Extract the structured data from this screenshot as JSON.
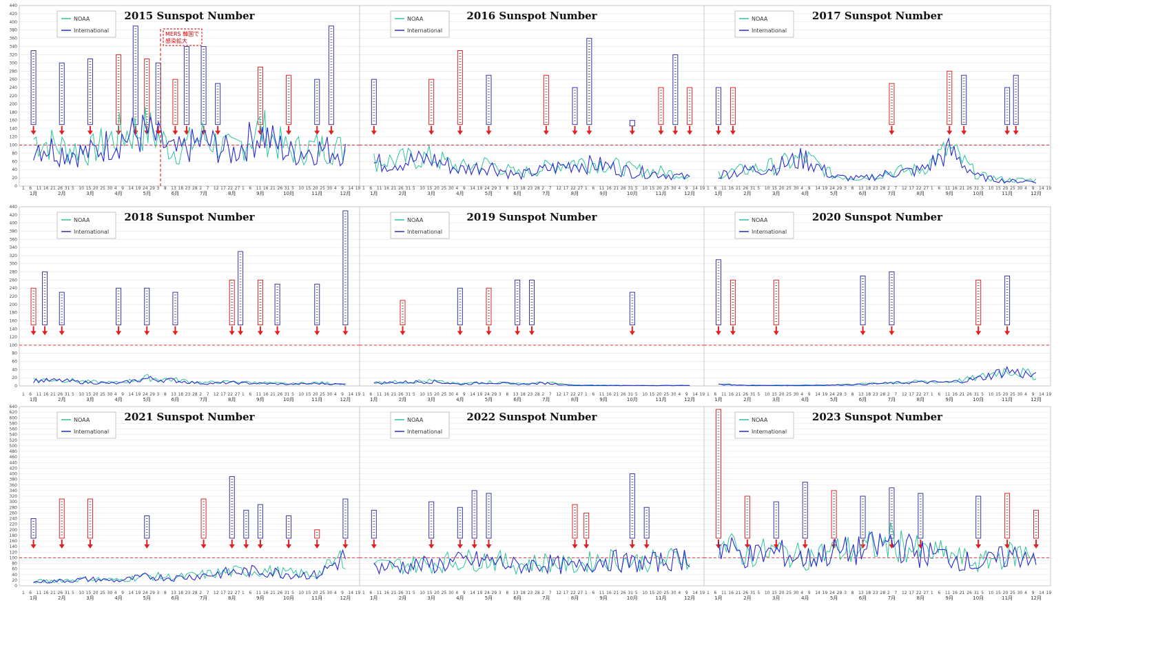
{
  "figure": {
    "note_lines": [
      "MERS 韓国で",
      "感染拡大"
    ],
    "y_ticks_top": [
      0,
      20,
      40,
      60,
      80,
      100,
      120,
      140,
      160,
      180,
      200,
      220,
      240,
      260,
      280,
      300,
      320,
      340,
      360,
      380,
      400,
      420,
      440
    ],
    "y_ticks_mid": [
      0,
      20,
      40,
      60,
      80,
      100,
      120,
      140,
      160,
      180,
      200,
      220,
      240,
      260,
      280,
      300,
      320,
      340,
      360,
      380,
      400,
      420,
      440
    ],
    "y_ticks_bottom": [
      0,
      20,
      40,
      60,
      80,
      100,
      120,
      140,
      160,
      180,
      200,
      220,
      240,
      260,
      280,
      300,
      320,
      340,
      360,
      380,
      400,
      420,
      440,
      460,
      480,
      500,
      520,
      540,
      560,
      580,
      600,
      620,
      640
    ],
    "months": [
      "1月",
      "2月",
      "3月",
      "4月",
      "5月",
      "6月",
      "7月",
      "8月",
      "9月",
      "10月",
      "11月",
      "12月"
    ],
    "colors": {
      "noaa": "#2ec4a0",
      "international": "#2a2ad0",
      "reference": "#e03030",
      "event_red": "#e02020",
      "event_blue": "#3333aa",
      "note": "#d00000"
    }
  },
  "chart_data": [
    {
      "type": "line",
      "title": "2015 Sunspot Number",
      "ylim": [
        0,
        440
      ],
      "reference_line": 100,
      "categories": [
        "1月",
        "2月",
        "3月",
        "4月",
        "5月",
        "6月",
        "7月",
        "8月",
        "9月",
        "10月",
        "11月",
        "12月"
      ],
      "series": [
        {
          "name": "NOAA",
          "values": [
            115,
            95,
            85,
            125,
            140,
            85,
            120,
            85,
            140,
            85,
            95,
            90
          ]
        },
        {
          "name": "International",
          "values": [
            105,
            85,
            80,
            115,
            130,
            80,
            110,
            80,
            130,
            80,
            90,
            85
          ]
        }
      ],
      "event_markers": [
        {
          "month": 1,
          "top": 330,
          "color": "blue"
        },
        {
          "month": 2,
          "top": 300,
          "color": "blue"
        },
        {
          "month": 3,
          "top": 310,
          "color": "blue"
        },
        {
          "month": 4,
          "top": 320,
          "color": "red"
        },
        {
          "month": 4.6,
          "top": 390,
          "color": "blue"
        },
        {
          "month": 5,
          "top": 310,
          "color": "red"
        },
        {
          "month": 5.4,
          "top": 300,
          "color": "blue"
        },
        {
          "month": 6,
          "top": 260,
          "color": "red"
        },
        {
          "month": 6.4,
          "top": 340,
          "color": "blue"
        },
        {
          "month": 7,
          "top": 340,
          "color": "blue"
        },
        {
          "month": 7.5,
          "top": 250,
          "color": "blue"
        },
        {
          "month": 9,
          "top": 290,
          "color": "red"
        },
        {
          "month": 10,
          "top": 270,
          "color": "red"
        },
        {
          "month": 11,
          "top": 260,
          "color": "blue"
        },
        {
          "month": 11.5,
          "top": 390,
          "color": "blue"
        }
      ]
    },
    {
      "type": "line",
      "title": "2016 Sunspot Number",
      "ylim": [
        0,
        440
      ],
      "reference_line": 100,
      "categories": [
        "1月",
        "2月",
        "3月",
        "4月",
        "5月",
        "6月",
        "7月",
        "8月",
        "9月",
        "10月",
        "11月",
        "12月"
      ],
      "series": [
        {
          "name": "NOAA",
          "values": [
            60,
            65,
            70,
            45,
            55,
            30,
            45,
            60,
            55,
            40,
            35,
            25
          ]
        },
        {
          "name": "International",
          "values": [
            55,
            60,
            65,
            40,
            50,
            25,
            40,
            55,
            50,
            35,
            30,
            20
          ]
        }
      ],
      "event_markers": [
        {
          "month": 1,
          "top": 260,
          "color": "blue"
        },
        {
          "month": 3,
          "top": 260,
          "color": "red"
        },
        {
          "month": 4,
          "top": 330,
          "color": "red"
        },
        {
          "month": 5,
          "top": 270,
          "color": "blue"
        },
        {
          "month": 7,
          "top": 270,
          "color": "red"
        },
        {
          "month": 8,
          "top": 240,
          "color": "blue"
        },
        {
          "month": 8.5,
          "top": 360,
          "color": "blue"
        },
        {
          "month": 10,
          "top": 160,
          "color": "blue"
        },
        {
          "month": 11,
          "top": 240,
          "color": "red"
        },
        {
          "month": 11.5,
          "top": 320,
          "color": "blue"
        },
        {
          "month": 12,
          "top": 240,
          "color": "red"
        }
      ]
    },
    {
      "type": "line",
      "title": "2017 Sunspot Number",
      "ylim": [
        0,
        440
      ],
      "reference_line": 100,
      "categories": [
        "1月",
        "2月",
        "3月",
        "4月",
        "5月",
        "6月",
        "7月",
        "8月",
        "9月",
        "10月",
        "11月",
        "12月"
      ],
      "series": [
        {
          "name": "NOAA",
          "values": [
            30,
            40,
            50,
            70,
            25,
            20,
            35,
            40,
            90,
            25,
            15,
            15
          ]
        },
        {
          "name": "International",
          "values": [
            28,
            38,
            48,
            68,
            22,
            18,
            32,
            38,
            85,
            22,
            12,
            12
          ]
        }
      ],
      "event_markers": [
        {
          "month": 1,
          "top": 240,
          "color": "blue"
        },
        {
          "month": 1.5,
          "top": 240,
          "color": "red"
        },
        {
          "month": 7,
          "top": 250,
          "color": "red"
        },
        {
          "month": 9,
          "top": 280,
          "color": "red"
        },
        {
          "month": 9.5,
          "top": 270,
          "color": "blue"
        },
        {
          "month": 11,
          "top": 240,
          "color": "blue"
        },
        {
          "month": 11.3,
          "top": 270,
          "color": "blue"
        }
      ]
    },
    {
      "type": "line",
      "title": "2018 Sunspot Number",
      "ylim": [
        0,
        440
      ],
      "reference_line": 100,
      "categories": [
        "1月",
        "2月",
        "3月",
        "4月",
        "5月",
        "6月",
        "7月",
        "8月",
        "9月",
        "10月",
        "11月",
        "12月"
      ],
      "series": [
        {
          "name": "NOAA",
          "values": [
            15,
            15,
            10,
            8,
            20,
            15,
            8,
            10,
            8,
            5,
            8,
            5
          ]
        },
        {
          "name": "International",
          "values": [
            13,
            13,
            8,
            6,
            18,
            13,
            6,
            8,
            6,
            4,
            6,
            4
          ]
        }
      ],
      "event_markers": [
        {
          "month": 1,
          "top": 240,
          "color": "red"
        },
        {
          "month": 1.4,
          "top": 280,
          "color": "blue"
        },
        {
          "month": 2,
          "top": 230,
          "color": "blue"
        },
        {
          "month": 4,
          "top": 240,
          "color": "blue"
        },
        {
          "month": 5,
          "top": 240,
          "color": "blue"
        },
        {
          "month": 6,
          "top": 230,
          "color": "blue"
        },
        {
          "month": 8,
          "top": 260,
          "color": "red"
        },
        {
          "month": 8.3,
          "top": 330,
          "color": "blue"
        },
        {
          "month": 9,
          "top": 260,
          "color": "red"
        },
        {
          "month": 9.6,
          "top": 250,
          "color": "blue"
        },
        {
          "month": 11,
          "top": 250,
          "color": "blue"
        },
        {
          "month": 12,
          "top": 430,
          "color": "blue"
        }
      ]
    },
    {
      "type": "line",
      "title": "2019 Sunspot Number",
      "ylim": [
        0,
        440
      ],
      "reference_line": 100,
      "categories": [
        "1月",
        "2月",
        "3月",
        "4月",
        "5月",
        "6月",
        "7月",
        "8月",
        "9月",
        "10月",
        "11月",
        "12月"
      ],
      "series": [
        {
          "name": "NOAA",
          "values": [
            8,
            10,
            12,
            5,
            10,
            5,
            8,
            2,
            2,
            1,
            1,
            2
          ]
        },
        {
          "name": "International",
          "values": [
            7,
            9,
            11,
            4,
            9,
            4,
            7,
            1,
            1,
            1,
            1,
            1
          ]
        }
      ],
      "event_markers": [
        {
          "month": 2,
          "top": 210,
          "color": "red"
        },
        {
          "month": 4,
          "top": 240,
          "color": "blue"
        },
        {
          "month": 5,
          "top": 240,
          "color": "red"
        },
        {
          "month": 6,
          "top": 260,
          "color": "blue"
        },
        {
          "month": 6.5,
          "top": 260,
          "color": "blue"
        },
        {
          "month": 10,
          "top": 230,
          "color": "blue"
        }
      ]
    },
    {
      "type": "line",
      "title": "2020 Sunspot Number",
      "ylim": [
        0,
        440
      ],
      "reference_line": 100,
      "categories": [
        "1月",
        "2月",
        "3月",
        "4月",
        "5月",
        "6月",
        "7月",
        "8月",
        "9月",
        "10月",
        "11月",
        "12月"
      ],
      "series": [
        {
          "name": "NOAA",
          "values": [
            5,
            2,
            2,
            2,
            3,
            5,
            8,
            10,
            10,
            20,
            40,
            25
          ]
        },
        {
          "name": "International",
          "values": [
            4,
            1,
            1,
            1,
            2,
            4,
            7,
            9,
            9,
            18,
            38,
            23
          ]
        }
      ],
      "event_markers": [
        {
          "month": 1,
          "top": 310,
          "color": "blue"
        },
        {
          "month": 1.5,
          "top": 260,
          "color": "red"
        },
        {
          "month": 3,
          "top": 260,
          "color": "red"
        },
        {
          "month": 6,
          "top": 270,
          "color": "blue"
        },
        {
          "month": 7,
          "top": 280,
          "color": "blue"
        },
        {
          "month": 10,
          "top": 260,
          "color": "red"
        },
        {
          "month": 11,
          "top": 270,
          "color": "blue"
        }
      ]
    },
    {
      "type": "line",
      "title": "2021 Sunspot Number",
      "ylim": [
        0,
        640
      ],
      "reference_line": 100,
      "categories": [
        "1月",
        "2月",
        "3月",
        "4月",
        "5月",
        "6月",
        "7月",
        "8月",
        "9月",
        "10月",
        "11月",
        "12月"
      ],
      "series": [
        {
          "name": "NOAA",
          "values": [
            15,
            20,
            25,
            20,
            35,
            30,
            40,
            50,
            55,
            45,
            40,
            110
          ]
        },
        {
          "name": "International",
          "values": [
            13,
            18,
            23,
            18,
            33,
            28,
            38,
            48,
            53,
            43,
            38,
            105
          ]
        }
      ],
      "event_markers": [
        {
          "month": 1,
          "top": 240,
          "color": "blue"
        },
        {
          "month": 2,
          "top": 310,
          "color": "red"
        },
        {
          "month": 3,
          "top": 310,
          "color": "red"
        },
        {
          "month": 5,
          "top": 250,
          "color": "blue"
        },
        {
          "month": 7,
          "top": 310,
          "color": "red"
        },
        {
          "month": 8,
          "top": 390,
          "color": "blue"
        },
        {
          "month": 8.5,
          "top": 270,
          "color": "blue"
        },
        {
          "month": 9,
          "top": 290,
          "color": "blue"
        },
        {
          "month": 10,
          "top": 250,
          "color": "blue"
        },
        {
          "month": 11,
          "top": 200,
          "color": "red"
        },
        {
          "month": 12,
          "top": 310,
          "color": "blue"
        }
      ]
    },
    {
      "type": "line",
      "title": "2022 Sunspot Number",
      "ylim": [
        0,
        640
      ],
      "reference_line": 100,
      "categories": [
        "1月",
        "2月",
        "3月",
        "4月",
        "5月",
        "6月",
        "7月",
        "8月",
        "9月",
        "10月",
        "11月",
        "12月"
      ],
      "series": [
        {
          "name": "NOAA",
          "values": [
            70,
            75,
            80,
            90,
            95,
            75,
            85,
            70,
            100,
            85,
            90,
            110
          ]
        },
        {
          "name": "International",
          "values": [
            65,
            70,
            75,
            85,
            90,
            70,
            80,
            65,
            95,
            80,
            85,
            105
          ]
        }
      ],
      "event_markers": [
        {
          "month": 1,
          "top": 270,
          "color": "blue"
        },
        {
          "month": 3,
          "top": 300,
          "color": "blue"
        },
        {
          "month": 4,
          "top": 280,
          "color": "blue"
        },
        {
          "month": 4.5,
          "top": 340,
          "color": "blue"
        },
        {
          "month": 5,
          "top": 330,
          "color": "blue"
        },
        {
          "month": 8,
          "top": 290,
          "color": "red"
        },
        {
          "month": 8.4,
          "top": 260,
          "color": "red"
        },
        {
          "month": 10,
          "top": 400,
          "color": "blue"
        },
        {
          "month": 10.5,
          "top": 280,
          "color": "blue"
        }
      ]
    },
    {
      "type": "line",
      "title": "2023 Sunspot Number",
      "ylim": [
        0,
        640
      ],
      "reference_line": 100,
      "categories": [
        "1月",
        "2月",
        "3月",
        "4月",
        "5月",
        "6月",
        "7月",
        "8月",
        "9月",
        "10月",
        "11月",
        "12月"
      ],
      "series": [
        {
          "name": "NOAA",
          "values": [
            150,
            110,
            125,
            100,
            125,
            130,
            160,
            120,
            110,
            80,
            110,
            120
          ]
        },
        {
          "name": "International",
          "values": [
            145,
            105,
            120,
            95,
            120,
            125,
            155,
            115,
            105,
            75,
            105,
            115
          ]
        }
      ],
      "event_markers": [
        {
          "month": 1,
          "top": 630,
          "color": "red"
        },
        {
          "month": 2,
          "top": 320,
          "color": "red"
        },
        {
          "month": 3,
          "top": 300,
          "color": "blue"
        },
        {
          "month": 4,
          "top": 370,
          "color": "blue"
        },
        {
          "month": 5,
          "top": 340,
          "color": "red"
        },
        {
          "month": 6,
          "top": 320,
          "color": "blue"
        },
        {
          "month": 7,
          "top": 350,
          "color": "blue"
        },
        {
          "month": 8,
          "top": 330,
          "color": "blue"
        },
        {
          "month": 10,
          "top": 320,
          "color": "blue"
        },
        {
          "month": 11,
          "top": 330,
          "color": "red"
        },
        {
          "month": 12,
          "top": 270,
          "color": "red"
        }
      ]
    }
  ]
}
